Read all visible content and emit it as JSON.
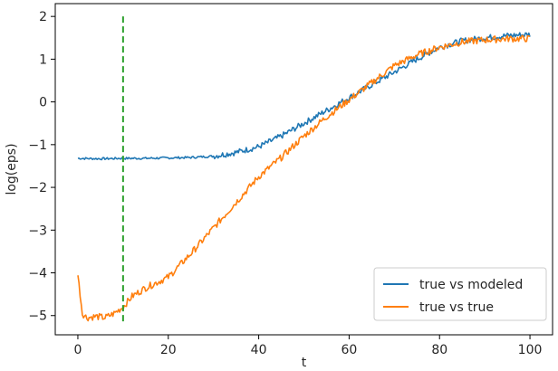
{
  "chart_data": {
    "type": "line",
    "title": "",
    "xlabel": "t",
    "ylabel": "log(eps)",
    "xlim": [
      -5,
      105
    ],
    "ylim": [
      -5.45,
      2.3
    ],
    "xticks": [
      0,
      20,
      40,
      60,
      80,
      100
    ],
    "xtick_labels": [
      "0",
      "20",
      "40",
      "60",
      "80",
      "100"
    ],
    "yticks": [
      2,
      1,
      0,
      -1,
      -2,
      -3,
      -4,
      -5
    ],
    "ytick_labels": [
      "2",
      "1",
      "0",
      "−1",
      "−2",
      "−3",
      "−4",
      "−5"
    ],
    "grid": false,
    "legend_position": "lower right",
    "vline": {
      "x": 10,
      "color": "#2ca02c",
      "style": "dashed"
    },
    "series": [
      {
        "name": "true vs modeled",
        "color": "#1f77b4",
        "x": [
          0,
          5,
          10,
          15,
          20,
          25,
          30,
          35,
          40,
          45,
          50,
          55,
          60,
          65,
          70,
          75,
          80,
          85,
          90,
          95,
          100
        ],
        "y": [
          -1.32,
          -1.33,
          -1.32,
          -1.32,
          -1.31,
          -1.3,
          -1.27,
          -1.18,
          -1.05,
          -0.8,
          -0.5,
          -0.2,
          0.1,
          0.4,
          0.7,
          1.0,
          1.28,
          1.43,
          1.5,
          1.55,
          1.58
        ]
      },
      {
        "name": "true vs true",
        "color": "#ff7f0e",
        "x": [
          0,
          1,
          2,
          4,
          6,
          8,
          10,
          12,
          15,
          20,
          25,
          30,
          35,
          40,
          45,
          50,
          55,
          60,
          65,
          70,
          75,
          80,
          85,
          90,
          95,
          100
        ],
        "y": [
          -4.05,
          -4.95,
          -5.05,
          -5.02,
          -5.05,
          -4.95,
          -4.8,
          -4.55,
          -4.35,
          -4.1,
          -3.55,
          -2.95,
          -2.35,
          -1.75,
          -1.3,
          -0.8,
          -0.35,
          0.05,
          0.45,
          0.85,
          1.1,
          1.28,
          1.4,
          1.45,
          1.48,
          1.48
        ]
      }
    ]
  }
}
